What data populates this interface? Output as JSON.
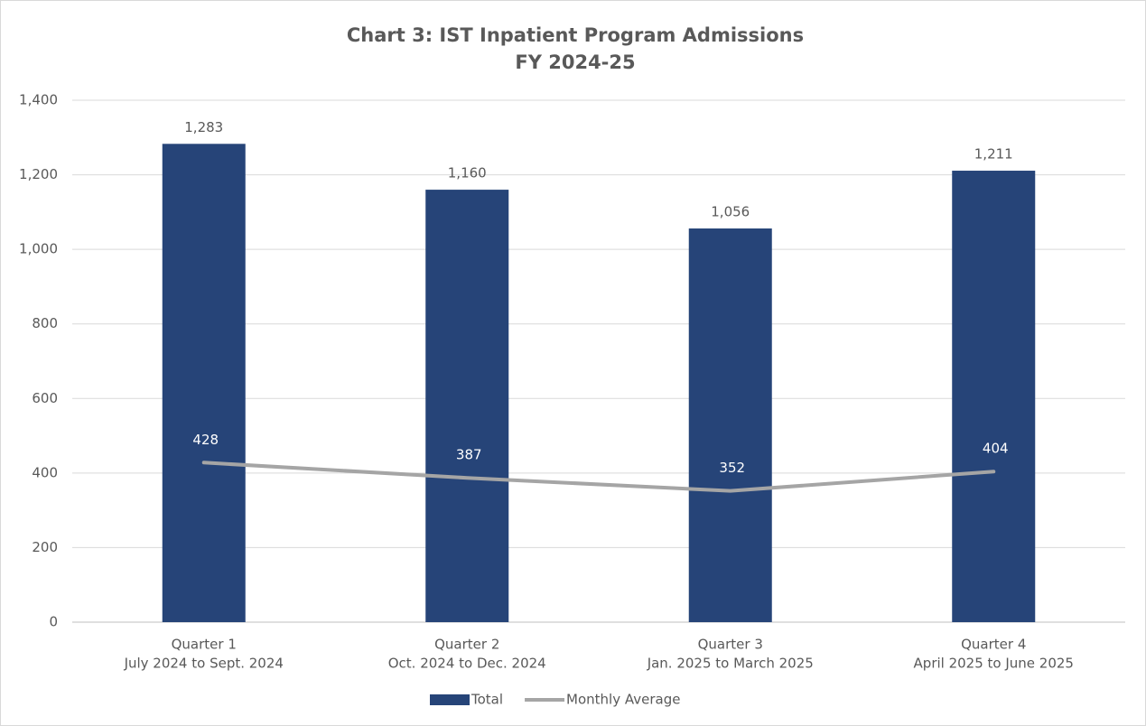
{
  "chart_data": {
    "type": "bar",
    "title": "Chart 3: IST Inpatient Program Admissions",
    "subtitle": "FY 2024-25",
    "categories": [
      [
        "Quarter 1",
        "July 2024 to Sept. 2024"
      ],
      [
        "Quarter 2",
        "Oct. 2024 to Dec. 2024"
      ],
      [
        "Quarter 3",
        "Jan. 2025 to March 2025"
      ],
      [
        "Quarter 4",
        "April 2025 to June 2025"
      ]
    ],
    "series": [
      {
        "name": "Total",
        "type": "bar",
        "color": "#264478",
        "values": [
          1283,
          1160,
          1056,
          1211
        ],
        "value_labels": [
          "1,283",
          "1,160",
          "1,056",
          "1,211"
        ]
      },
      {
        "name": "Monthly Average",
        "type": "line",
        "color": "#a5a5a5",
        "values": [
          428,
          387,
          352,
          404
        ]
      }
    ],
    "ylim": [
      0,
      1400
    ],
    "yticks": [
      0,
      200,
      400,
      600,
      800,
      {
        "value": 1000,
        "label": "1,000"
      },
      {
        "value": 1200,
        "label": "1,200"
      },
      {
        "value": 1400,
        "label": "1,400"
      }
    ],
    "grid": true,
    "legend": "bottom"
  }
}
